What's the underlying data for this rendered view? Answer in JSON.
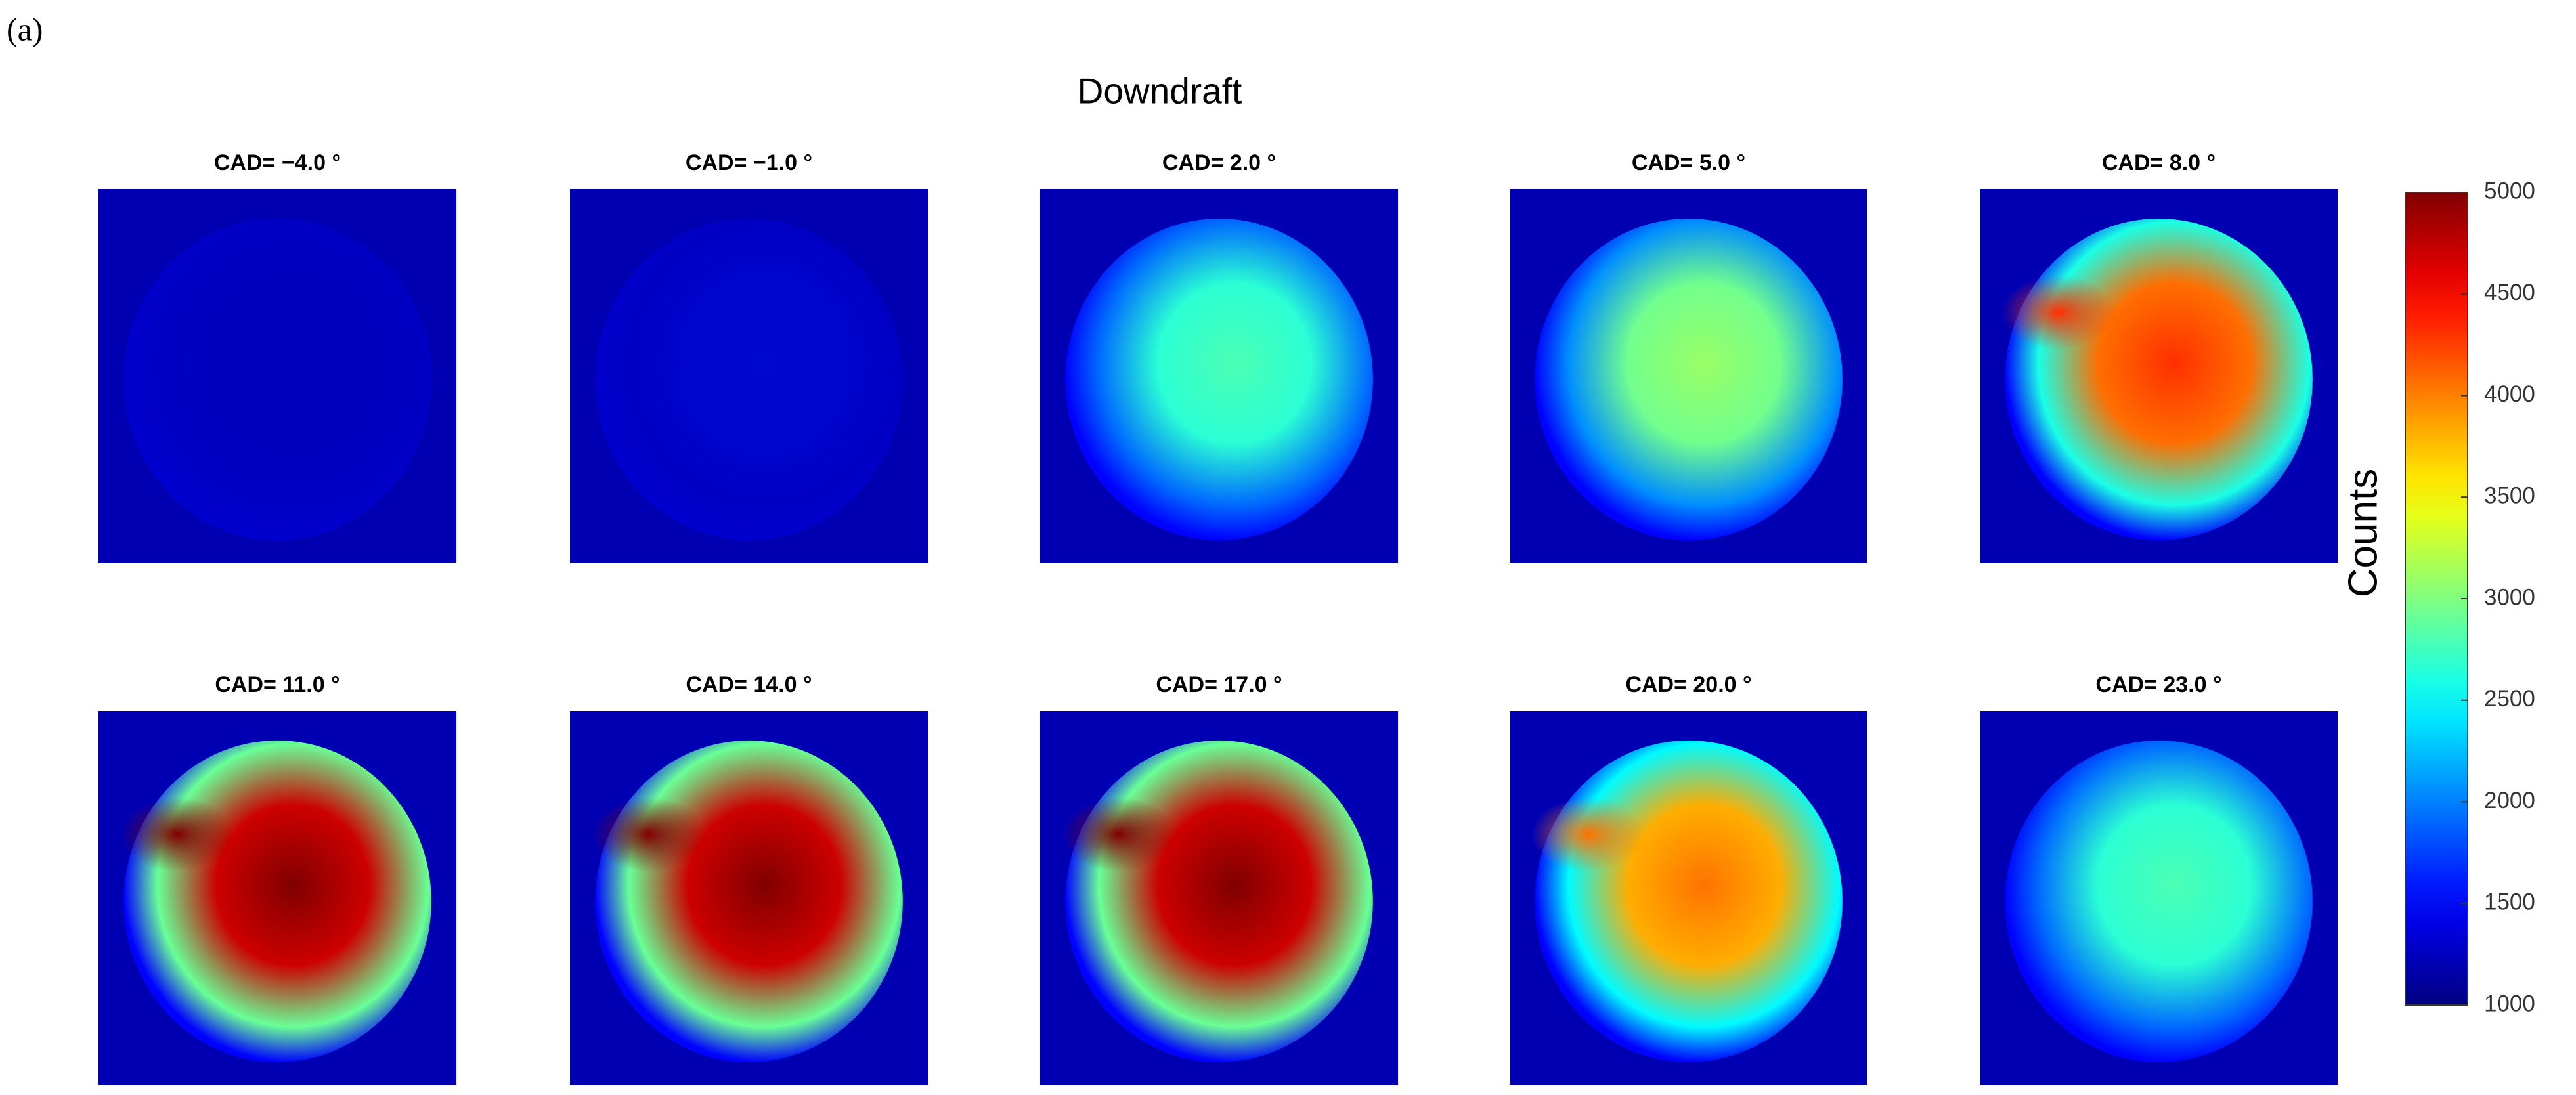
{
  "chart_data": {
    "type": "image-grid",
    "label": "(a)",
    "title": "Downdraft",
    "panels": [
      "CAD= −4.0 °",
      "CAD= −1.0 °",
      "CAD=  2.0 °",
      "CAD=  5.0 °",
      "CAD=  8.0 °",
      "CAD=  11.0 °",
      "CAD=  14.0 °",
      "CAD=  17.0 °",
      "CAD=  20.0 °",
      "CAD=  23.0 °"
    ],
    "colorbar": {
      "label": "Counts",
      "colormap": "jet",
      "ylim": [
        1000,
        5000
      ],
      "yticks": [
        1000,
        1500,
        2000,
        2500,
        3000,
        3500,
        4000,
        4500,
        5000
      ]
    }
  }
}
